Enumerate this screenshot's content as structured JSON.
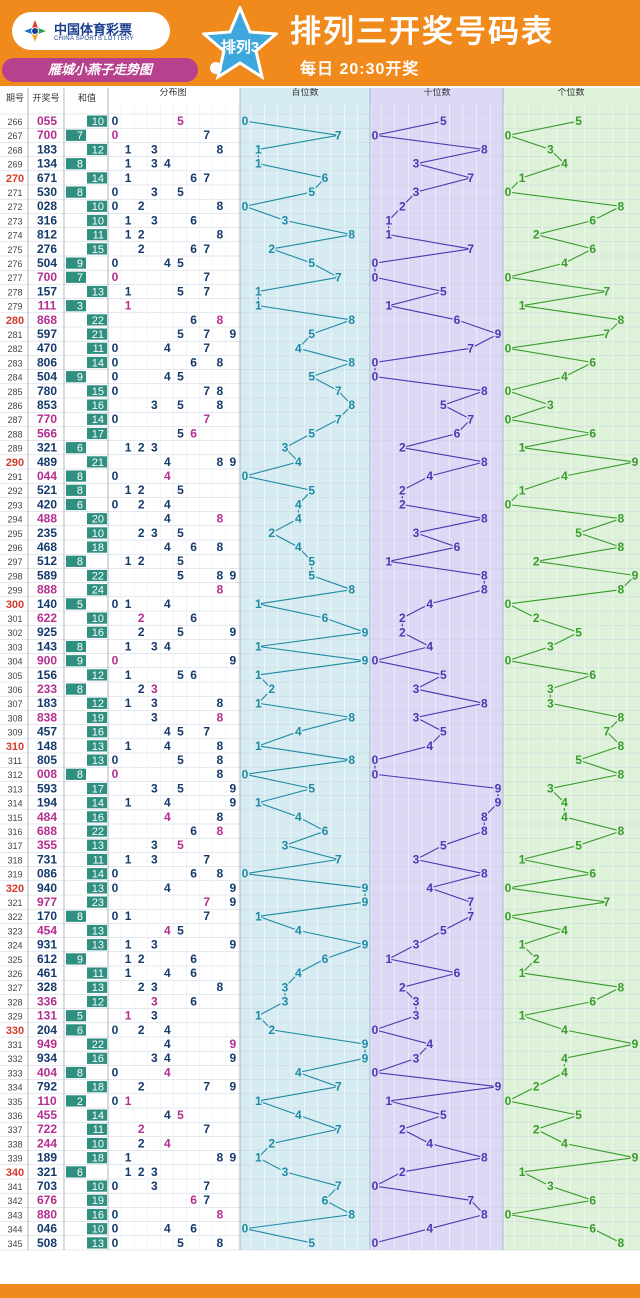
{
  "header": {
    "logo_cn": "中国体育彩票",
    "logo_en": "CHINA SPORTS LOTTERY",
    "slogan": "雁城小燕子走势图",
    "star_label": "排列3",
    "title": "排列三开奖号码表",
    "subtitle": "每日 20:30开奖"
  },
  "colors": {
    "header_orange": "#f08a1c",
    "hundreds_zone": "#d6ecf2",
    "tens_zone": "#dcd8f6",
    "units_zone": "#ddf2d9",
    "hundreds_line": "#1f8aa3",
    "tens_line": "#4a39b0",
    "units_line": "#3a9a2e",
    "highlight_issue": "#d23c2c",
    "special_number": "#b52d8f",
    "sum_badge": "#2f8f80"
  },
  "chart_data": {
    "type": "table",
    "title": "排列三开奖号码表",
    "columns": {
      "issue": "期号",
      "number": "开奖号",
      "sum": "和值",
      "distribution": "分布图",
      "hundreds": "百位数",
      "tens": "十位数",
      "units": "个位数"
    },
    "digit_labels": [
      "0",
      "1",
      "2",
      "3",
      "4",
      "5",
      "6",
      "7",
      "8",
      "9"
    ],
    "issues": [
      266,
      267,
      268,
      269,
      270,
      271,
      272,
      273,
      274,
      275,
      276,
      277,
      278,
      279,
      280,
      281,
      282,
      283,
      284,
      285,
      286,
      287,
      288,
      289,
      290,
      291,
      292,
      293,
      294,
      295,
      296,
      297,
      298,
      299,
      300,
      301,
      302,
      303,
      304,
      305,
      306,
      307,
      308,
      309,
      310,
      311,
      312,
      313,
      314,
      315,
      316,
      317,
      318,
      319,
      320,
      321,
      322,
      323,
      324,
      325,
      326,
      327,
      328,
      329,
      330,
      331,
      332,
      333,
      334,
      335,
      336,
      337,
      338,
      339,
      340,
      341,
      342,
      343,
      344,
      345
    ],
    "numbers": [
      "055",
      "700",
      "183",
      "134",
      "671",
      "530",
      "028",
      "316",
      "812",
      "276",
      "504",
      "700",
      "157",
      "111",
      "868",
      "597",
      "470",
      "806",
      "504",
      "780",
      "853",
      "770",
      "566",
      "321",
      "489",
      "044",
      "521",
      "420",
      "488",
      "235",
      "468",
      "512",
      "589",
      "888",
      "140",
      "622",
      "925",
      "143",
      "900",
      "156",
      "233",
      "183",
      "838",
      "457",
      "148",
      "805",
      "008",
      "593",
      "194",
      "484",
      "688",
      "355",
      "731",
      "086",
      "940",
      "977",
      "170",
      "454",
      "931",
      "612",
      "461",
      "328",
      "336",
      "131",
      "204",
      "949",
      "934",
      "404",
      "792",
      "110",
      "455",
      "722",
      "244",
      "189",
      "321",
      "703",
      "676",
      "880",
      "046",
      "508"
    ],
    "sums": [
      "10",
      "7",
      "12",
      "8",
      "14",
      "8",
      "10",
      "10",
      "11",
      "15",
      "9",
      "7",
      "13",
      "3",
      "22",
      "21",
      "11",
      "14",
      "9",
      "15",
      "16",
      "14",
      "17",
      "6",
      "21",
      "8",
      "8",
      "6",
      "20",
      "10",
      "18",
      "8",
      "22",
      "24",
      "5",
      "10",
      "16",
      "8",
      "9",
      "12",
      "8",
      "12",
      "19",
      "16",
      "13",
      "13",
      "8",
      "17",
      "14",
      "16",
      "22",
      "13",
      "11",
      "14",
      "13",
      "23",
      "8",
      "13",
      "13",
      "9",
      "11",
      "13",
      "12",
      "5",
      "6",
      "22",
      "16",
      "8",
      "18",
      "2",
      "14",
      "11",
      "10",
      "18",
      "6",
      "10",
      "19",
      "16",
      "10",
      "13"
    ],
    "highlight_issues": [
      270,
      280,
      290,
      300,
      310,
      320,
      330,
      340
    ],
    "series": [
      {
        "name": "百位数",
        "position": 0
      },
      {
        "name": "十位数",
        "position": 1
      },
      {
        "name": "个位数",
        "position": 2
      }
    ],
    "grid": true
  }
}
